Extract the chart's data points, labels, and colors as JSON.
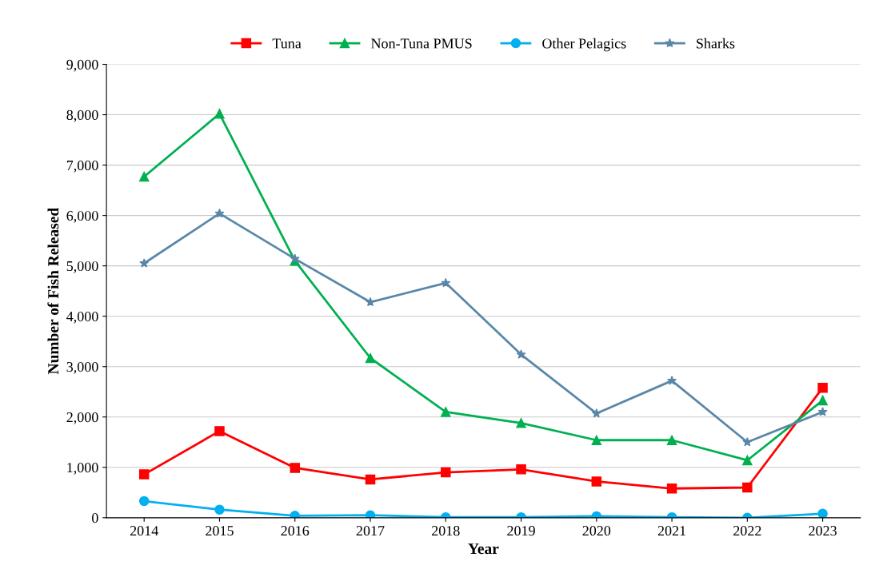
{
  "chart_data": {
    "type": "line",
    "xlabel": "Year",
    "ylabel": "Number of Fish Released",
    "categories": [
      "2014",
      "2015",
      "2016",
      "2017",
      "2018",
      "2019",
      "2020",
      "2021",
      "2022",
      "2023"
    ],
    "series": [
      {
        "name": "Tuna",
        "color": "#ff0000",
        "marker": "square",
        "values": [
          860,
          1720,
          990,
          760,
          900,
          960,
          720,
          580,
          600,
          2580
        ]
      },
      {
        "name": "Non-Tuna PMUS",
        "color": "#00b050",
        "marker": "triangle",
        "values": [
          6770,
          8020,
          5100,
          3170,
          2100,
          1880,
          1540,
          1540,
          1140,
          2330
        ]
      },
      {
        "name": "Other Pelagics",
        "color": "#00b0f0",
        "marker": "circle",
        "values": [
          330,
          160,
          40,
          50,
          10,
          10,
          30,
          10,
          0,
          80
        ]
      },
      {
        "name": "Sharks",
        "color": "#5a87a8",
        "marker": "star",
        "values": [
          5050,
          6040,
          5140,
          4280,
          4660,
          3240,
          2070,
          2720,
          1500,
          2100
        ]
      }
    ],
    "ylim": [
      0,
      9000
    ],
    "yticks": [
      {
        "value": 0,
        "label": "0"
      },
      {
        "value": 1000,
        "label": "1,000"
      },
      {
        "value": 2000,
        "label": "2,000"
      },
      {
        "value": 3000,
        "label": "3,000"
      },
      {
        "value": 4000,
        "label": "4,000"
      },
      {
        "value": 5000,
        "label": "5,000"
      },
      {
        "value": 6000,
        "label": "6,000"
      },
      {
        "value": 7000,
        "label": "7,000"
      },
      {
        "value": 8000,
        "label": "8,000"
      },
      {
        "value": 9000,
        "label": "9,000"
      }
    ],
    "grid": "y",
    "legend": "top",
    "line_style": "solid"
  }
}
